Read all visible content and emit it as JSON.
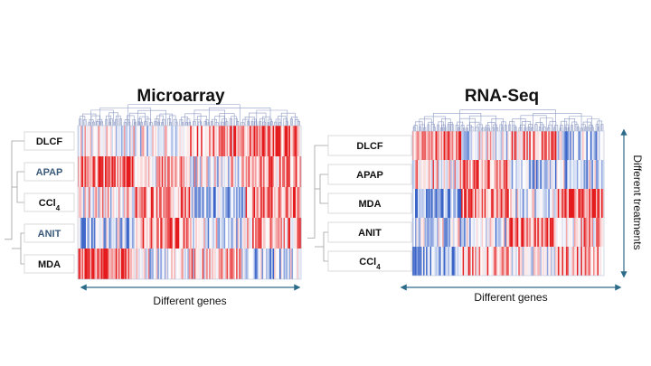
{
  "colors": {
    "high": "#e41a1c",
    "low": "#3a64c8",
    "neutral": "#ffffff",
    "dendrogram": "#a0a0a0",
    "top_dendrogram": "#8f9cc6",
    "arrow": "#2d6b8a",
    "label_text": "#111111",
    "label_text_alt": "#3b5a7a"
  },
  "axes": {
    "x_label": "Different genes",
    "y_label": "Different treatments"
  },
  "chart_data": [
    {
      "type": "heatmap",
      "title": "Microarray",
      "rows": [
        {
          "label": "DLCF",
          "sub": ""
        },
        {
          "label": "APAP",
          "sub": ""
        },
        {
          "label": "CCl",
          "sub": "4"
        },
        {
          "label": "ANIT",
          "sub": ""
        },
        {
          "label": "MDA",
          "sub": ""
        }
      ],
      "xlabel": "Different genes",
      "color_scale": [
        "low",
        "neutral",
        "high"
      ]
    },
    {
      "type": "heatmap",
      "title": "RNA-Seq",
      "rows": [
        {
          "label": "DLCF",
          "sub": ""
        },
        {
          "label": "APAP",
          "sub": ""
        },
        {
          "label": "MDA",
          "sub": ""
        },
        {
          "label": "ANIT",
          "sub": ""
        },
        {
          "label": "CCl",
          "sub": "4"
        }
      ],
      "xlabel": "Different genes",
      "ylabel": "Different treatments",
      "color_scale": [
        "low",
        "neutral",
        "high"
      ]
    }
  ]
}
